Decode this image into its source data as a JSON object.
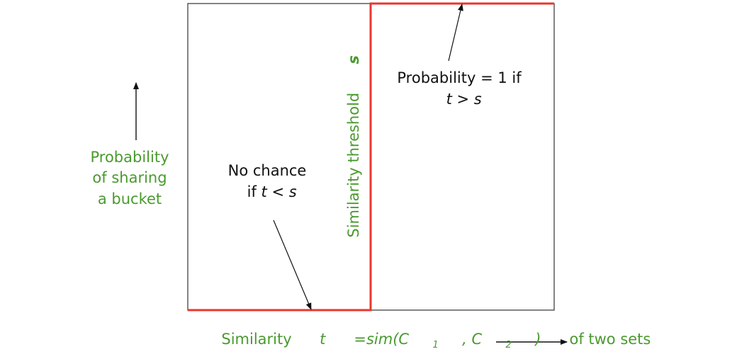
{
  "y_axis_label": {
    "line1": "Probability",
    "line2": "of sharing",
    "line3": "a bucket"
  },
  "x_axis_label": {
    "prefix": "Similarity",
    "t": "t",
    "eq_sim": " =sim(C",
    "sub1": "1",
    "comma": ", C",
    "sub2": "2",
    "close": ")",
    "suffix": " of two sets"
  },
  "threshold_label": {
    "text": "Similarity threshold ",
    "symbol": "s"
  },
  "left_annotation": {
    "line1": "No chance",
    "line2_prefix": "if ",
    "t": "t",
    "lt": " < ",
    "s": "s"
  },
  "right_annotation": {
    "line1": "Probability = 1 if",
    "t": "t",
    "gt": " > ",
    "s": "s"
  },
  "colors": {
    "step_line": "#e8372f",
    "label_green": "#4a9a2f",
    "frame": "#333333",
    "text": "#111111"
  }
}
